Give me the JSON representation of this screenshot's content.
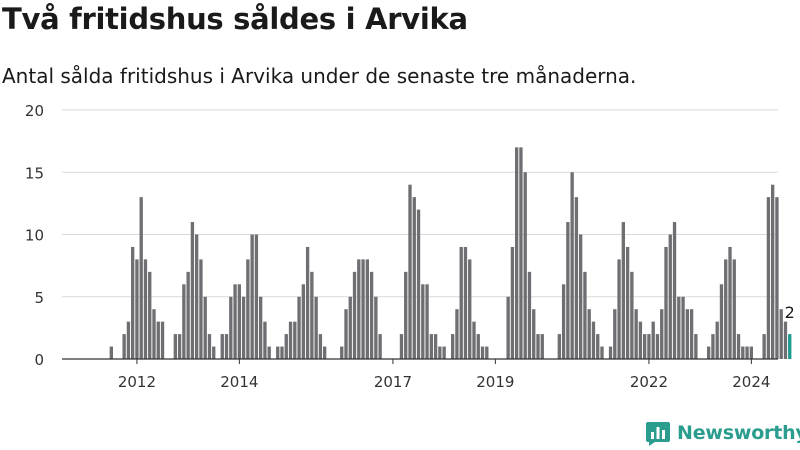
{
  "header": {
    "title": "Två fritidshus såldes i Arvika",
    "subtitle": "Antal sålda fritidshus i Arvika under de senaste tre månaderna."
  },
  "brand": {
    "name": "Newsworthy",
    "icon": "newsworthy-logo-icon",
    "color": "#2a9d8f"
  },
  "colors": {
    "bar": "#6e6e73",
    "highlight": "#1f9c8f",
    "grid": "#d9d9d9",
    "axis": "#333333"
  },
  "chart_data": {
    "type": "bar",
    "title": "Två fritidshus såldes i Arvika",
    "subtitle": "Antal sålda fritidshus i Arvika under de senaste tre månaderna.",
    "xlabel": "",
    "ylabel": "",
    "ylim": [
      0,
      20
    ],
    "yticks": [
      0,
      5,
      10,
      15,
      20
    ],
    "xtick_labels": [
      "2012",
      "2014",
      "2017",
      "2019",
      "2022",
      "2024"
    ],
    "grid": true,
    "legend": "none",
    "annotation": "2",
    "first_period": "2011-08",
    "last_period": "2024-11",
    "frequency": "monthly",
    "values": [
      0,
      0,
      0,
      0,
      0,
      1,
      0,
      0,
      2,
      3,
      9,
      8,
      13,
      8,
      7,
      4,
      3,
      3,
      0,
      0,
      2,
      2,
      6,
      7,
      11,
      10,
      8,
      5,
      2,
      1,
      0,
      2,
      2,
      5,
      6,
      6,
      5,
      8,
      10,
      10,
      5,
      3,
      1,
      0,
      1,
      1,
      2,
      3,
      3,
      5,
      6,
      9,
      7,
      5,
      2,
      1,
      0,
      0,
      0,
      1,
      4,
      5,
      7,
      8,
      8,
      8,
      7,
      5,
      2,
      0,
      0,
      0,
      0,
      2,
      7,
      14,
      13,
      12,
      6,
      6,
      2,
      2,
      1,
      1,
      0,
      2,
      4,
      9,
      9,
      8,
      3,
      2,
      1,
      1,
      0,
      0,
      0,
      0,
      5,
      9,
      17,
      17,
      15,
      7,
      4,
      2,
      2,
      0,
      0,
      0,
      2,
      6,
      11,
      15,
      13,
      10,
      7,
      4,
      3,
      2,
      1,
      0,
      1,
      4,
      8,
      11,
      9,
      7,
      4,
      3,
      2,
      2,
      3,
      2,
      4,
      9,
      10,
      11,
      5,
      5,
      4,
      4,
      2,
      0,
      0,
      1,
      2,
      3,
      6,
      8,
      9,
      8,
      2,
      1,
      1,
      1,
      0,
      0,
      2,
      13,
      14,
      13,
      4,
      3,
      2
    ]
  }
}
